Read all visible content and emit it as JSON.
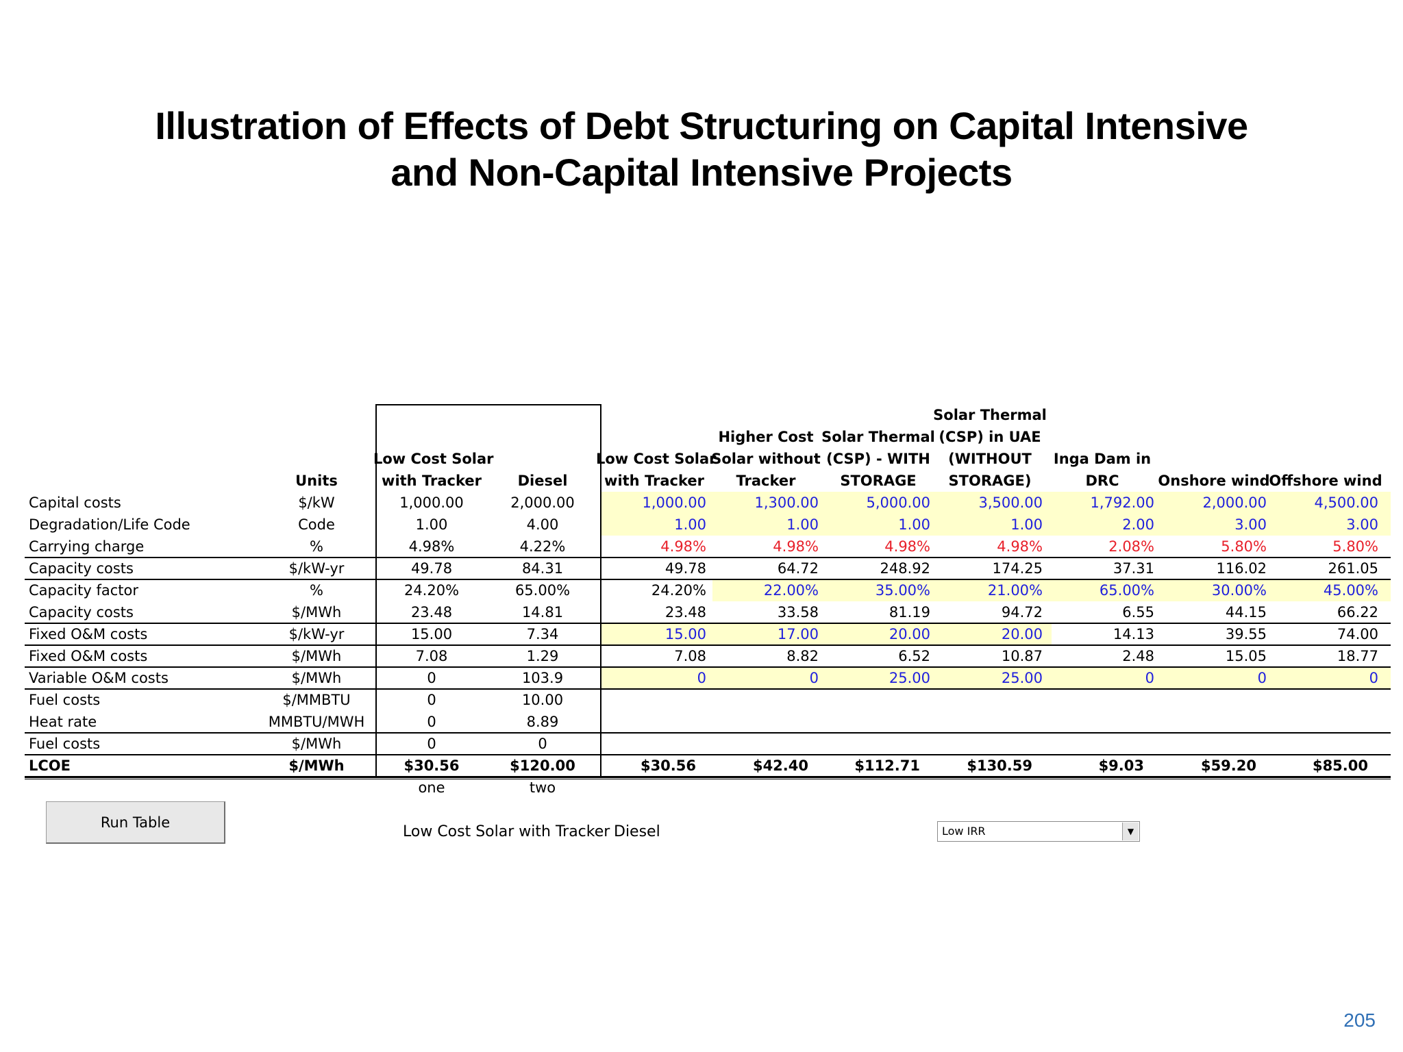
{
  "slide": {
    "title_line1": "Illustration of Effects of Debt Structuring on Capital Intensive",
    "title_line2": "and Non-Capital Intensive Projects",
    "page_number": "205"
  },
  "table": {
    "units_header": "Units",
    "headers": [
      [
        "Low Cost Solar",
        "with Tracker"
      ],
      [
        "Diesel"
      ],
      [
        "Low Cost Solar",
        "with Tracker"
      ],
      [
        "Higher Cost",
        "Solar without",
        "Tracker"
      ],
      [
        "Solar Thermal",
        "(CSP)  - WITH",
        "STORAGE"
      ],
      [
        "Solar Thermal",
        "(CSP) in UAE",
        "(WITHOUT",
        "STORAGE)"
      ],
      [
        "Inga Dam in",
        "DRC"
      ],
      [
        "Onshore wind"
      ],
      [
        "Offshore wind"
      ]
    ],
    "rows": [
      {
        "label": "Capital costs",
        "unit": "$/kW",
        "values": [
          "1,000.00",
          "2,000.00",
          "1,000.00",
          "1,300.00",
          "5,000.00",
          "3,500.00",
          "1,792.00",
          "2,000.00",
          "4,500.00"
        ]
      },
      {
        "label": "Degradation/Life Code",
        "unit": "Code",
        "values": [
          "1.00",
          "4.00",
          "1.00",
          "1.00",
          "1.00",
          "1.00",
          "2.00",
          "3.00",
          "3.00"
        ]
      },
      {
        "label": "Carrying charge",
        "unit": "%",
        "values": [
          "4.98%",
          "4.22%",
          "4.98%",
          "4.98%",
          "4.98%",
          "4.98%",
          "2.08%",
          "5.80%",
          "5.80%"
        ]
      },
      {
        "label": "Capacity costs",
        "unit": "$/kW-yr",
        "values": [
          "49.78",
          "84.31",
          "49.78",
          "64.72",
          "248.92",
          "174.25",
          "37.31",
          "116.02",
          "261.05"
        ]
      },
      {
        "label": "Capacity factor",
        "unit": "%",
        "values": [
          "24.20%",
          "65.00%",
          "24.20%",
          "22.00%",
          "35.00%",
          "21.00%",
          "65.00%",
          "30.00%",
          "45.00%"
        ]
      },
      {
        "label": "Capacity costs",
        "unit": "$/MWh",
        "values": [
          "23.48",
          "14.81",
          "23.48",
          "33.58",
          "81.19",
          "94.72",
          "6.55",
          "44.15",
          "66.22"
        ]
      },
      {
        "label": "Fixed O&M costs",
        "unit": "$/kW-yr",
        "values": [
          "15.00",
          "7.34",
          "15.00",
          "17.00",
          "20.00",
          "20.00",
          "14.13",
          "39.55",
          "74.00"
        ]
      },
      {
        "label": "Fixed O&M costs",
        "unit": "$/MWh",
        "values": [
          "7.08",
          "1.29",
          "7.08",
          "8.82",
          "6.52",
          "10.87",
          "2.48",
          "15.05",
          "18.77"
        ]
      },
      {
        "label": "Variable O&M costs",
        "unit": "$/MWh",
        "values": [
          "0",
          "103.9",
          "0",
          "0",
          "25.00",
          "25.00",
          "0",
          "0",
          "0"
        ]
      },
      {
        "label": "Fuel costs",
        "unit": "$/MMBTU",
        "values": [
          "0",
          "10.00",
          "",
          "",
          "",
          "",
          "",
          "",
          ""
        ]
      },
      {
        "label": "Heat rate",
        "unit": "MMBTU/MWH",
        "values": [
          "0",
          "8.89",
          "",
          "",
          "",
          "",
          "",
          "",
          ""
        ]
      },
      {
        "label": "Fuel costs",
        "unit": "$/MWh",
        "values": [
          "0",
          "0",
          "",
          "",
          "",
          "",
          "",
          "",
          ""
        ]
      },
      {
        "label": "LCOE",
        "unit": "$/MWh",
        "values": [
          "$30.56",
          "$120.00",
          "$30.56",
          "$42.40",
          "$112.71",
          "$130.59",
          "$9.03",
          "$59.20",
          "$85.00"
        ]
      }
    ],
    "footer_labels": [
      "one",
      "two"
    ]
  },
  "controls": {
    "run_table_label": "Run Table",
    "selection_a": "Low Cost Solar with Tracker",
    "selection_b": "Diesel",
    "scenario_selected": "Low IRR"
  },
  "colors": {
    "input_blue": "#1f1fdd",
    "input_red": "#e8202a",
    "input_fill": "#ffffcc",
    "page_number": "#2f6fb5"
  }
}
